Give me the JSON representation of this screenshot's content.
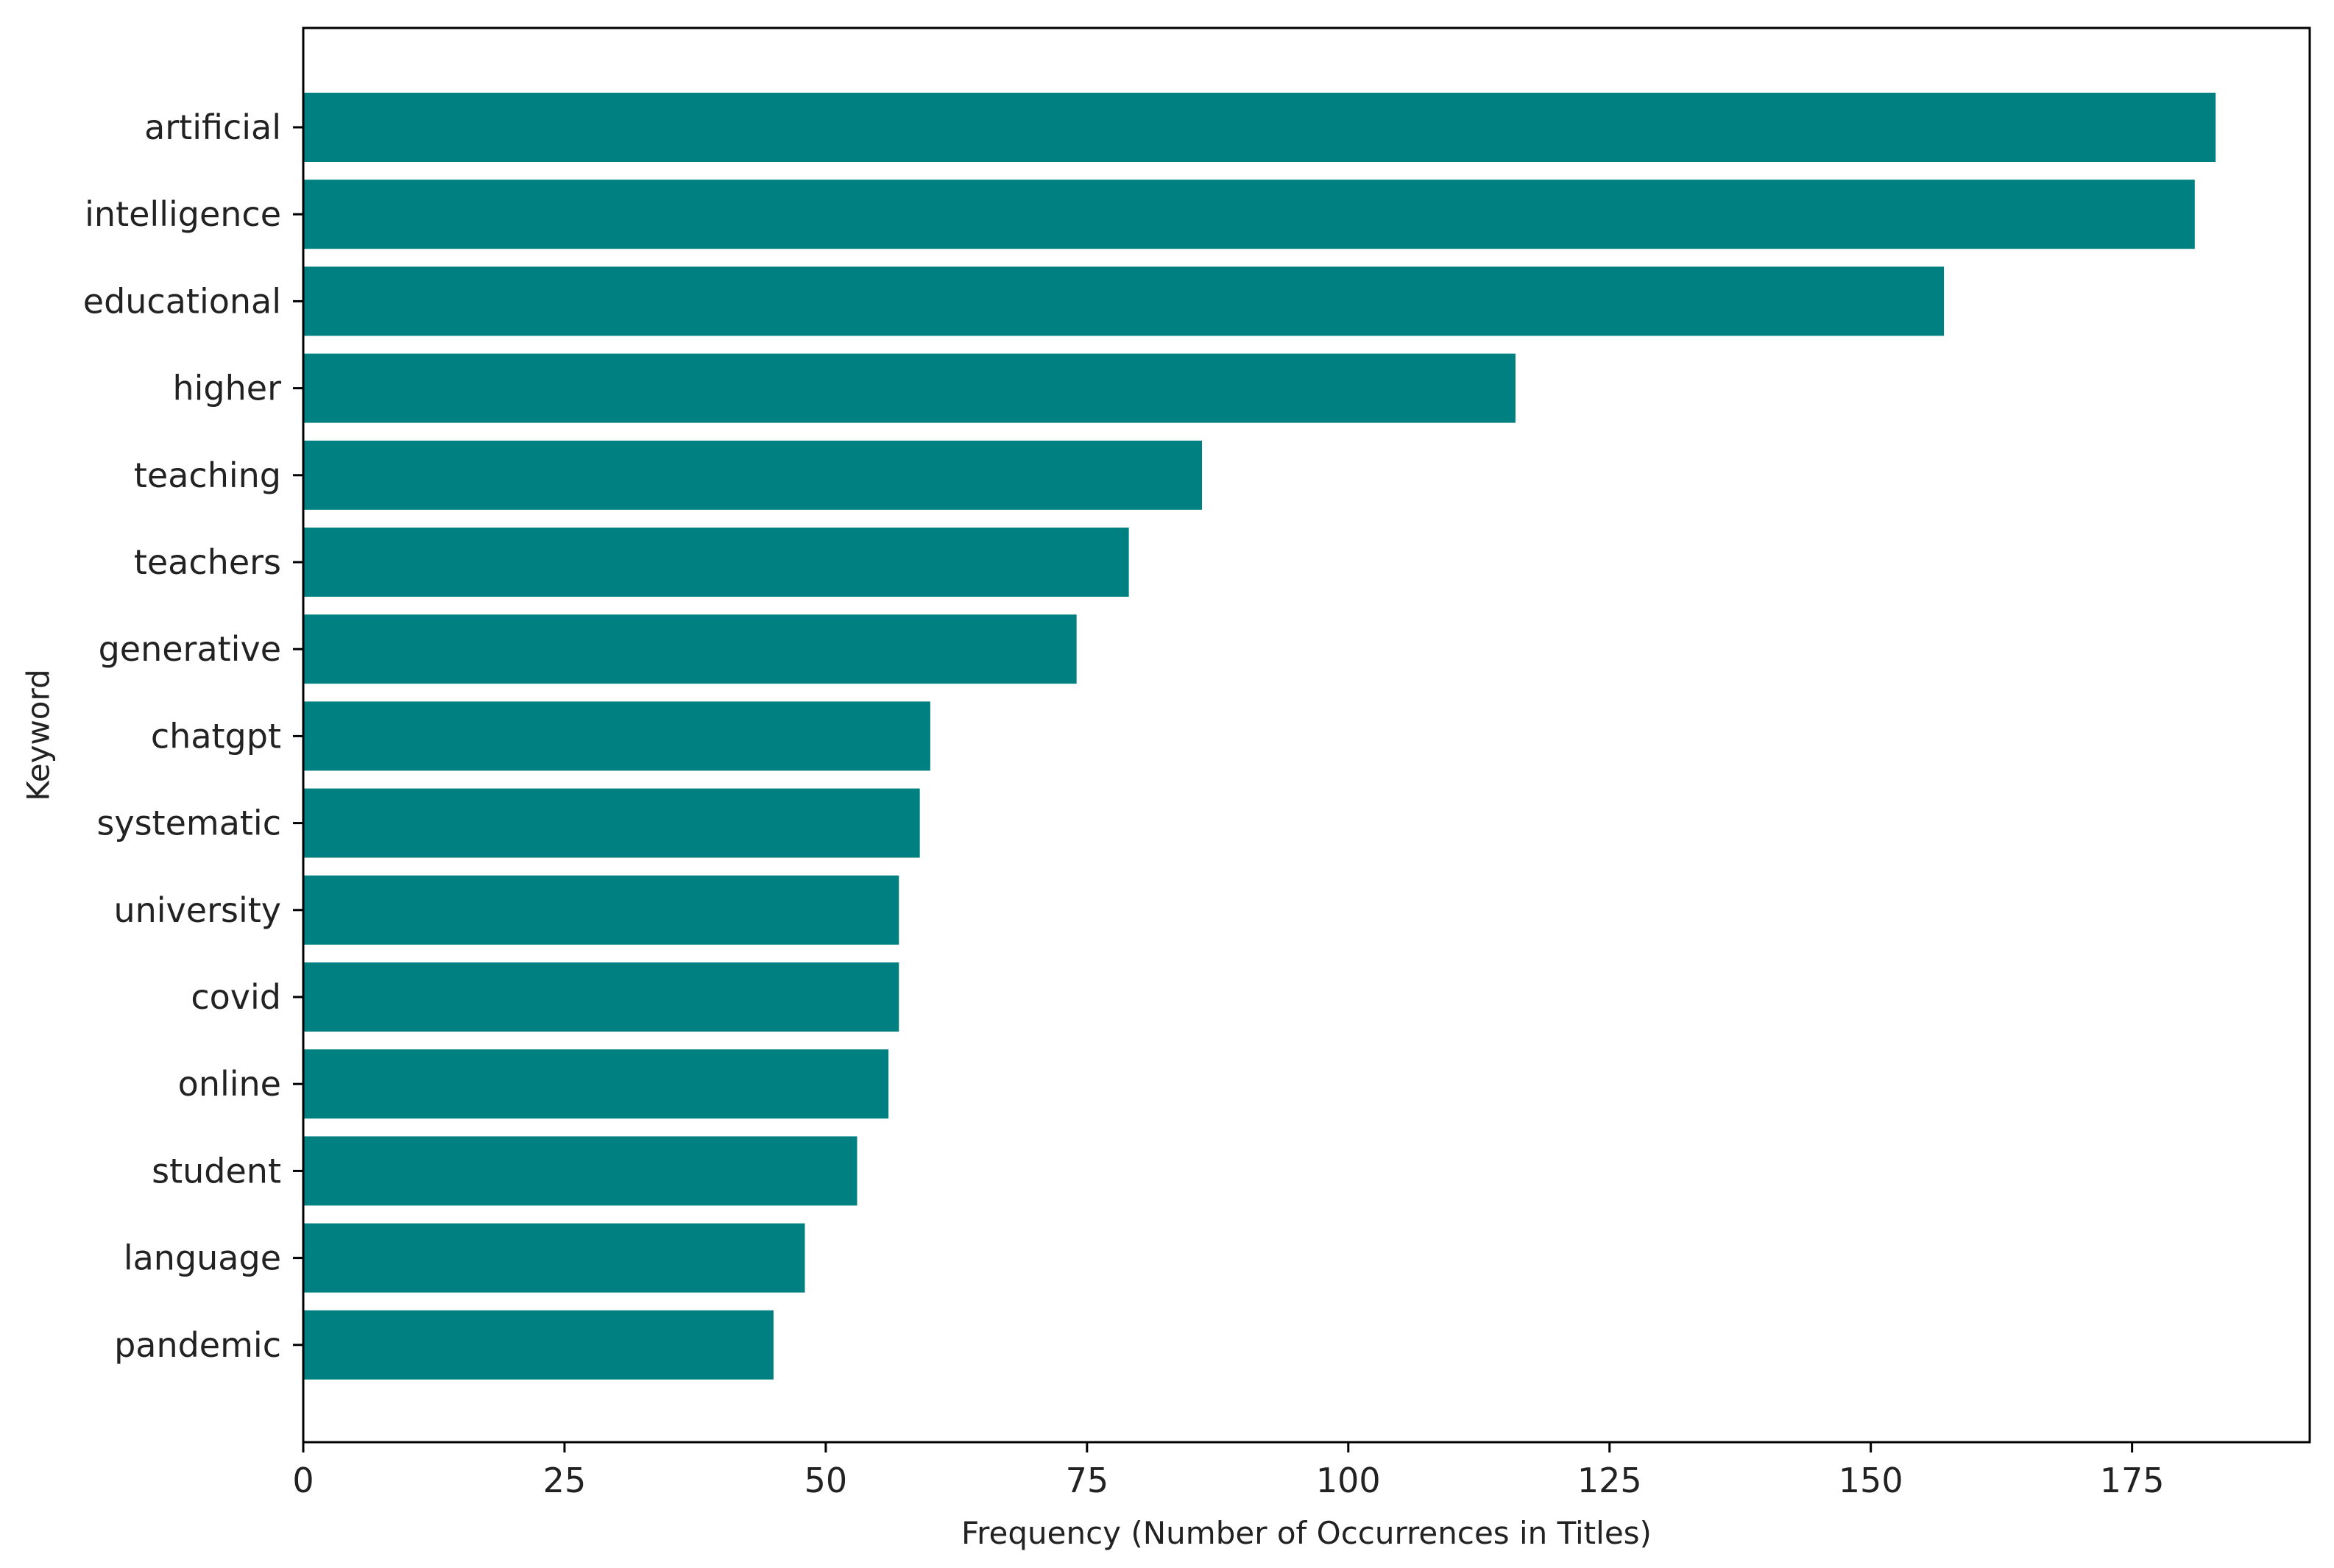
{
  "chart_data": {
    "type": "bar",
    "orientation": "horizontal",
    "categories": [
      "artificial",
      "intelligence",
      "educational",
      "higher",
      "teaching",
      "teachers",
      "generative",
      "chatgpt",
      "systematic",
      "university",
      "covid",
      "online",
      "student",
      "language",
      "pandemic"
    ],
    "values": [
      183,
      181,
      157,
      116,
      86,
      79,
      74,
      60,
      59,
      57,
      57,
      56,
      53,
      48,
      45
    ],
    "xlabel": "Frequency (Number of Occurrences in Titles)",
    "ylabel": "Keyword",
    "xlim": [
      0,
      192
    ],
    "xticks": [
      0,
      25,
      50,
      75,
      100,
      125,
      150,
      175
    ],
    "grid": false,
    "legend": "none",
    "bar_color": "#008080"
  }
}
